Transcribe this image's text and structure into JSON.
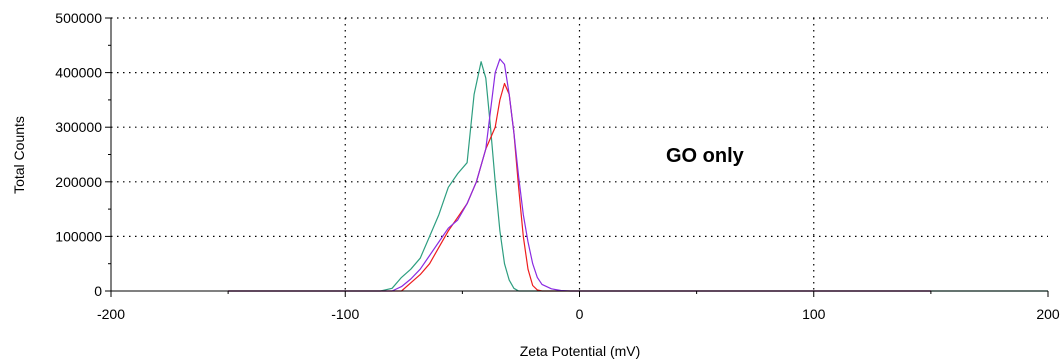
{
  "chart_data": {
    "type": "line",
    "title": "",
    "xlabel": "Zeta Potential (mV)",
    "ylabel": "Total Counts",
    "xlim": [
      -200,
      200
    ],
    "ylim": [
      0,
      500000
    ],
    "xticks": [
      -200,
      -100,
      0,
      100,
      200
    ],
    "xtick_labels": [
      "-200",
      "-100",
      "0",
      "100",
      "200"
    ],
    "yticks": [
      0,
      100000,
      200000,
      300000,
      400000,
      500000
    ],
    "ytick_labels": [
      "0",
      "100000",
      "200000",
      "300000",
      "400000",
      "500000"
    ],
    "grid": true,
    "annotation": "GO only",
    "series": [
      {
        "color": "#2e9e80",
        "x": [
          -150,
          -85,
          -80,
          -76,
          -72,
          -68,
          -64,
          -60,
          -56,
          -52,
          -48,
          -45,
          -42,
          -40,
          -38,
          -36,
          -34,
          -32,
          -30,
          -28,
          -26,
          -24,
          -22,
          -20,
          -10,
          0,
          50,
          100,
          150,
          200
        ],
        "y": [
          0,
          0,
          5000,
          25000,
          40000,
          60000,
          100000,
          140000,
          190000,
          215000,
          235000,
          360000,
          420000,
          390000,
          300000,
          200000,
          110000,
          50000,
          20000,
          5000,
          0,
          0,
          0,
          0,
          0,
          0,
          0,
          0,
          0,
          0
        ]
      },
      {
        "color": "#ee1d1d",
        "x": [
          -150,
          -76,
          -72,
          -68,
          -64,
          -60,
          -56,
          -52,
          -48,
          -44,
          -40,
          -36,
          -34,
          -32,
          -30,
          -28,
          -26,
          -24,
          -22,
          -20,
          -18,
          -16,
          0,
          150
        ],
        "y": [
          0,
          0,
          15000,
          30000,
          50000,
          80000,
          110000,
          135000,
          160000,
          200000,
          260000,
          300000,
          350000,
          380000,
          360000,
          290000,
          190000,
          100000,
          40000,
          10000,
          2000,
          0,
          0,
          0
        ]
      },
      {
        "color": "#8a2be2",
        "x": [
          -150,
          -80,
          -76,
          -72,
          -68,
          -64,
          -60,
          -56,
          -52,
          -48,
          -44,
          -40,
          -38,
          -36,
          -34,
          -32,
          -30,
          -28,
          -26,
          -24,
          -22,
          -20,
          -18,
          -16,
          -12,
          -8,
          -4,
          0,
          150
        ],
        "y": [
          0,
          0,
          8000,
          22000,
          40000,
          65000,
          90000,
          115000,
          130000,
          160000,
          200000,
          260000,
          330000,
          400000,
          425000,
          415000,
          360000,
          290000,
          210000,
          140000,
          90000,
          50000,
          25000,
          12000,
          4000,
          1000,
          0,
          0,
          0
        ]
      }
    ]
  }
}
